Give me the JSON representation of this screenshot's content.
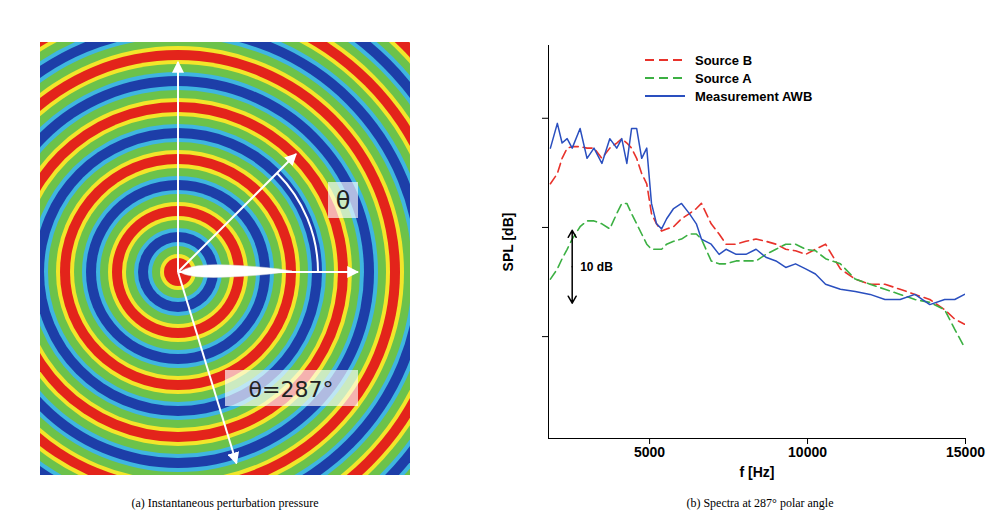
{
  "chart_data": [
    {
      "type": "contour",
      "caption": "(a) Instantaneous perturbation pressure",
      "annotations": [
        "θ",
        "θ=287°"
      ],
      "polar_angle": 287
    },
    {
      "type": "line",
      "caption": "(b) Spectra at 287° polar angle",
      "x_label": "f [Hz]",
      "y_label": "SPL [dB]",
      "x": [
        1860,
        2080,
        2230,
        2390,
        2550,
        2800,
        3020,
        3240,
        3490,
        3740,
        3960,
        4120,
        4280,
        4430,
        4590,
        4750,
        4910,
        5060,
        5220,
        5380,
        5540,
        5760,
        6010,
        6260,
        6480,
        6640,
        6950,
        7200,
        7420,
        7740,
        8050,
        8370,
        8680,
        9000,
        9310,
        9620,
        9940,
        10250,
        10570,
        11040,
        11510,
        11980,
        12450,
        12930,
        13400,
        13870,
        14340,
        14660,
        14970
      ],
      "series": [
        {
          "name": "Source B",
          "color": "#e8322b",
          "line_style": "dashed",
          "values": [
            61.0,
            62.4,
            64.5,
            65.9,
            66.1,
            66.1,
            65.9,
            65.9,
            64.5,
            65.9,
            66.6,
            67.2,
            66.6,
            65.9,
            64.5,
            62.4,
            61.0,
            56.9,
            55.5,
            54.5,
            54.8,
            55.1,
            56.2,
            56.9,
            57.6,
            58.3,
            55.5,
            54.1,
            52.7,
            52.7,
            53.1,
            53.4,
            53.1,
            52.7,
            52.0,
            51.8,
            51.3,
            52.0,
            52.7,
            49.3,
            47.9,
            47.2,
            47.2,
            46.5,
            45.8,
            45.1,
            43.7,
            42.4,
            41.7
          ]
        },
        {
          "name": "Source A",
          "color": "#3cb043",
          "line_style": "dashed",
          "values": [
            47.9,
            49.3,
            50.7,
            52.0,
            53.4,
            55.1,
            55.9,
            55.9,
            55.5,
            54.8,
            56.9,
            58.3,
            58.3,
            56.9,
            55.5,
            54.1,
            52.7,
            52.0,
            52.0,
            52.0,
            52.7,
            53.1,
            53.4,
            54.1,
            54.1,
            53.4,
            50.4,
            50.0,
            50.0,
            50.4,
            50.4,
            50.4,
            51.3,
            52.0,
            52.7,
            52.7,
            52.0,
            51.8,
            50.7,
            50.0,
            47.9,
            47.2,
            46.5,
            45.8,
            45.1,
            44.7,
            43.7,
            41.0,
            38.5
          ]
        },
        {
          "name": "Measurement AWB",
          "color": "#2a4fbf",
          "line_style": "solid",
          "values": [
            65.9,
            69.3,
            66.6,
            67.2,
            65.9,
            68.6,
            64.5,
            65.9,
            63.8,
            67.2,
            65.9,
            67.2,
            63.8,
            68.6,
            68.6,
            64.5,
            65.9,
            58.3,
            55.5,
            54.8,
            56.2,
            57.6,
            58.3,
            56.9,
            55.5,
            53.4,
            52.7,
            51.3,
            52.0,
            51.3,
            51.3,
            52.0,
            50.9,
            50.4,
            49.5,
            50.0,
            49.3,
            48.6,
            47.2,
            46.5,
            46.2,
            45.8,
            45.1,
            45.1,
            45.8,
            44.4,
            45.1,
            45.1,
            45.8
          ]
        }
      ],
      "xlim": [
        1800,
        15000
      ],
      "xticks": [
        5000,
        10000,
        15000
      ],
      "ylim": [
        26,
        80
      ],
      "yticks": [
        40,
        55,
        70
      ],
      "tick_labels": "x",
      "legend": "top",
      "annotations": [
        {
          "text": "10 dB",
          "x": 2550,
          "y": [
            44.6,
            54.6
          ]
        }
      ]
    }
  ]
}
